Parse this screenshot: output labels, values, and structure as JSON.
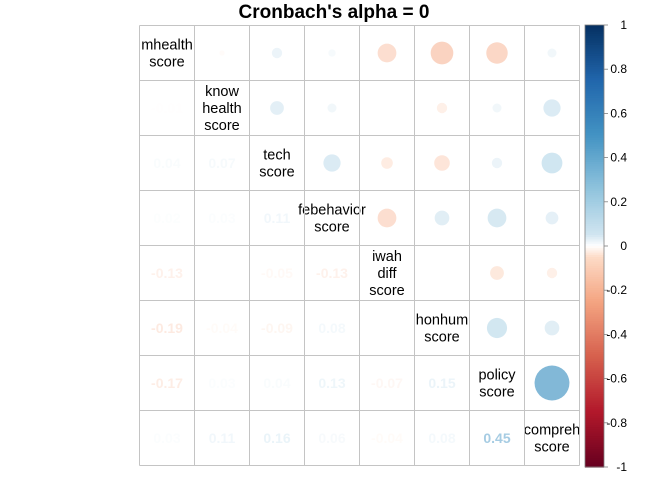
{
  "chart_data": {
    "type": "heatmap",
    "title": "Cronbach's alpha =  0",
    "variables": [
      [
        "mhealth",
        "score"
      ],
      [
        "know",
        "health",
        "score"
      ],
      [
        "tech",
        "score"
      ],
      [
        "febehavior",
        "score"
      ],
      [
        "iwah",
        "diff",
        "score"
      ],
      [
        "honhum",
        "score"
      ],
      [
        "policy",
        "score"
      ],
      [
        "compreh",
        "score"
      ]
    ],
    "matrix": [
      [
        1,
        -0.01,
        0.04,
        0.02,
        -0.13,
        -0.19,
        -0.17,
        0.03
      ],
      [
        -0.01,
        1,
        0.07,
        0.03,
        0,
        -0.04,
        0.03,
        0.11
      ],
      [
        0.04,
        0.07,
        1,
        0.11,
        -0.05,
        -0.09,
        0.04,
        0.16
      ],
      [
        0.02,
        0.03,
        0.11,
        1,
        -0.13,
        0.08,
        0.13,
        0.06
      ],
      [
        -0.13,
        0,
        -0.05,
        -0.13,
        1,
        0,
        -0.07,
        -0.04
      ],
      [
        -0.19,
        -0.04,
        -0.09,
        0.08,
        0,
        1,
        0.15,
        0.08
      ],
      [
        -0.17,
        0.03,
        0.04,
        0.13,
        -0.07,
        0.15,
        1,
        0.45
      ],
      [
        0.03,
        0.11,
        0.16,
        0.06,
        -0.04,
        0.08,
        0.45,
        1
      ]
    ],
    "lower_labels": [
      [
        "",
        "",
        "",
        "",
        "",
        "",
        "",
        ""
      ],
      [
        "-0.01",
        "",
        "",
        "",
        "",
        "",
        "",
        ""
      ],
      [
        "0.04",
        "0.07",
        "",
        "",
        "",
        "",
        "",
        ""
      ],
      [
        "0.02",
        "0.03",
        "0.11",
        "",
        "",
        "",
        "",
        ""
      ],
      [
        "-0.13",
        "",
        "-0.05",
        "-0.13",
        "",
        "",
        "",
        ""
      ],
      [
        "-0.19",
        "-0.04",
        "-0.09",
        "0.08",
        "",
        "",
        "",
        ""
      ],
      [
        "-0.17",
        "0.03",
        "0.04",
        "0.13",
        "-0.07",
        "0.15",
        "",
        ""
      ],
      [
        "0.03",
        "0.11",
        "0.16",
        "0.06",
        "-0.04",
        "0.08",
        "0.45",
        ""
      ]
    ],
    "colorbar": {
      "range": [
        -1,
        1
      ],
      "ticks": [
        "1",
        "0.8",
        "0.6",
        "0.4",
        "0.2",
        "0",
        "-0.2",
        "-0.4",
        "-0.6",
        "-0.8",
        "-1"
      ]
    },
    "upper": "circle",
    "lower": "number",
    "diagonal": "label"
  }
}
